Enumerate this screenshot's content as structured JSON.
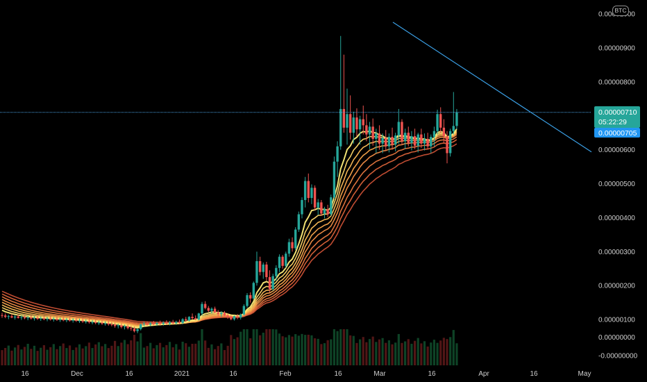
{
  "currency_badge": "BTC",
  "chart_data": {
    "type": "candlestick",
    "currency": "BTC",
    "y_axis": {
      "ticks": [
        "0.00001000",
        "0.00000900",
        "0.00000800",
        "0.00000700",
        "0.00000600",
        "0.00000500",
        "0.00000400",
        "0.00000300",
        "0.00000200",
        "0.00000100",
        "0.00000000",
        "-0.00000000"
      ],
      "ylim": [
        -2e-07,
        1.05e-05
      ]
    },
    "x_axis": {
      "ticks": [
        "16",
        "Dec",
        "16",
        "2021",
        "16",
        "Feb",
        "16",
        "Mar",
        "16",
        "Apr",
        "16",
        "May"
      ],
      "note": "daily candles, approx. early Nov 2020 to early May 2021"
    },
    "last_price": "0.00000710",
    "countdown": "05:22:29",
    "bid_price": "0.00000705",
    "price_level_line": 7.1e-06,
    "trendline": {
      "from": {
        "date": "2021-03-02",
        "price": 9.1e-06
      },
      "to": {
        "date": "2021-05-03",
        "price": 6.1e-06
      }
    },
    "ribbon": {
      "ema_count": 8,
      "colors": [
        "#ffee7a",
        "#ffd769",
        "#ffbf5a",
        "#f9a64d",
        "#f28e47",
        "#e87840",
        "#dc643a",
        "#c95035"
      ]
    },
    "candles": [
      [
        1.13e-06,
        1.2e-06,
        1.05e-06,
        1.12e-06
      ],
      [
        1.12e-06,
        1.18e-06,
        1.04e-06,
        1.08e-06
      ],
      [
        1.08e-06,
        1.14e-06,
        1.01e-06,
        1.1e-06
      ],
      [
        1.1e-06,
        1.17e-06,
        1.04e-06,
        1.06e-06
      ],
      [
        1.06e-06,
        1.13e-06,
        1e-06,
        1.09e-06
      ],
      [
        1.09e-06,
        1.16e-06,
        1.03e-06,
        1.05e-06
      ],
      [
        1.05e-06,
        1.12e-06,
        9.9e-07,
        1.07e-06
      ],
      [
        1.07e-06,
        1.14e-06,
        1.01e-06,
        1.04e-06
      ],
      [
        1.04e-06,
        1.11e-06,
        9.8e-07,
        1.06e-06
      ],
      [
        1.06e-06,
        1.13e-06,
        1e-06,
        1.03e-06
      ],
      [
        1.03e-06,
        1.1e-06,
        9.7e-07,
        1.05e-06
      ],
      [
        1.05e-06,
        1.12e-06,
        9.9e-07,
        1.02e-06
      ],
      [
        1.02e-06,
        1.09e-06,
        9.6e-07,
        1.04e-06
      ],
      [
        1.04e-06,
        1.11e-06,
        9.8e-07,
        1.01e-06
      ],
      [
        1.01e-06,
        1.08e-06,
        9.5e-07,
        1.03e-06
      ],
      [
        1.03e-06,
        1.1e-06,
        9.7e-07,
        1e-06
      ],
      [
        1e-06,
        1.07e-06,
        9.4e-07,
        1.02e-06
      ],
      [
        1.02e-06,
        1.09e-06,
        9.6e-07,
        9.9e-07
      ],
      [
        9.9e-07,
        1.06e-06,
        9.3e-07,
        1.01e-06
      ],
      [
        1.01e-06,
        1.08e-06,
        9.5e-07,
        9.8e-07
      ],
      [
        9.8e-07,
        1.05e-06,
        9.2e-07,
        1e-06
      ],
      [
        1e-06,
        1.07e-06,
        9.4e-07,
        9.7e-07
      ],
      [
        9.7e-07,
        1.04e-06,
        9.1e-07,
        9.9e-07
      ],
      [
        9.9e-07,
        1.06e-06,
        9.3e-07,
        9.6e-07
      ],
      [
        9.6e-07,
        1.03e-06,
        9e-07,
        9.7e-07
      ],
      [
        9.7e-07,
        1.04e-06,
        9e-07,
        9.4e-07
      ],
      [
        9.4e-07,
        1.01e-06,
        8.8e-07,
        9.5e-07
      ],
      [
        9.5e-07,
        1.02e-06,
        8.8e-07,
        9.2e-07
      ],
      [
        9.2e-07,
        9.9e-07,
        8.6e-07,
        9.3e-07
      ],
      [
        9.3e-07,
        1e-06,
        8.6e-07,
        9e-07
      ],
      [
        9e-07,
        9.7e-07,
        8.4e-07,
        9.1e-07
      ],
      [
        9.1e-07,
        9.8e-07,
        8.4e-07,
        8.8e-07
      ],
      [
        8.8e-07,
        9.5e-07,
        8.2e-07,
        8.9e-07
      ],
      [
        8.9e-07,
        9.6e-07,
        8.2e-07,
        8.6e-07
      ],
      [
        8.6e-07,
        9.3e-07,
        8e-07,
        8.5e-07
      ],
      [
        8.5e-07,
        9.1e-07,
        7.6e-07,
        8.1e-07
      ],
      [
        8.1e-07,
        8.8e-07,
        7.4e-07,
        8.3e-07
      ],
      [
        8.3e-07,
        8.9e-07,
        7.4e-07,
        7.8e-07
      ],
      [
        7.8e-07,
        8.5e-07,
        7.1e-07,
        8e-07
      ],
      [
        8e-07,
        8.6e-07,
        7.1e-07,
        7.5e-07
      ],
      [
        7.5e-07,
        8.2e-07,
        6.7e-07,
        7.3e-07
      ],
      [
        7.3e-07,
        7.9e-07,
        6.2e-07,
        6.6e-07
      ],
      [
        6.6e-07,
        7.4e-07,
        6e-07,
        7.2e-07
      ],
      [
        7.2e-07,
        8.8e-07,
        6.8e-07,
        8.6e-07
      ],
      [
        8.6e-07,
        9.4e-07,
        8e-07,
        8.8e-07
      ],
      [
        8.8e-07,
        9.5e-07,
        8.2e-07,
        8.5e-07
      ],
      [
        8.5e-07,
        9.3e-07,
        8e-07,
        8.9e-07
      ],
      [
        8.9e-07,
        9.6e-07,
        8.3e-07,
        8.6e-07
      ],
      [
        8.6e-07,
        9.4e-07,
        8.1e-07,
        9e-07
      ],
      [
        9e-07,
        9.7e-07,
        8.4e-07,
        8.7e-07
      ],
      [
        8.7e-07,
        9.5e-07,
        8.2e-07,
        9.1e-07
      ],
      [
        9.1e-07,
        9.8e-07,
        8.5e-07,
        8.8e-07
      ],
      [
        8.8e-07,
        9.6e-07,
        8.3e-07,
        9.2e-07
      ],
      [
        9.2e-07,
        9.9e-07,
        8.6e-07,
        8.9e-07
      ],
      [
        8.9e-07,
        9.7e-07,
        8.4e-07,
        9.3e-07
      ],
      [
        9.3e-07,
        1e-06,
        8.7e-07,
        9e-07
      ],
      [
        9e-07,
        1.04e-06,
        8.6e-07,
        1.01e-06
      ],
      [
        1.01e-06,
        1.08e-06,
        9.3e-07,
        9.7e-07
      ],
      [
        9.7e-07,
        1.1e-06,
        9.4e-07,
        1.08e-06
      ],
      [
        1.08e-06,
        1.18e-06,
        1e-06,
        1.04e-06
      ],
      [
        1.04e-06,
        1.12e-06,
        9.8e-07,
        1e-06
      ],
      [
        1e-06,
        1.2e-06,
        9.7e-07,
        1.18e-06
      ],
      [
        1.18e-06,
        1.52e-06,
        1.12e-06,
        1.46e-06
      ],
      [
        1.46e-06,
        1.54e-06,
        1.3e-06,
        1.34e-06
      ],
      [
        1.34e-06,
        1.4e-06,
        1.22e-06,
        1.26e-06
      ],
      [
        1.26e-06,
        1.36e-06,
        1.18e-06,
        1.32e-06
      ],
      [
        1.32e-06,
        1.38e-06,
        1.19e-06,
        1.21e-06
      ],
      [
        1.21e-06,
        1.28e-06,
        1.1e-06,
        1.16e-06
      ],
      [
        1.16e-06,
        1.25e-06,
        1.08e-06,
        1.2e-06
      ],
      [
        1.2e-06,
        1.25e-06,
        1.1e-06,
        1.12e-06
      ],
      [
        1.12e-06,
        1.18e-06,
        1.02e-06,
        1.08e-06
      ],
      [
        1.08e-06,
        1.13e-06,
        9.8e-07,
        1.01e-06
      ],
      [
        1.01e-06,
        1.12e-06,
        9.7e-07,
        1.1e-06
      ],
      [
        1.1e-06,
        1.16e-06,
        1.01e-06,
        1.06e-06
      ],
      [
        1.06e-06,
        1.18e-06,
        1e-06,
        1.15e-06
      ],
      [
        1.15e-06,
        1.45e-06,
        1.12e-06,
        1.4e-06
      ],
      [
        1.4e-06,
        1.78e-06,
        1.35e-06,
        1.72e-06
      ],
      [
        1.72e-06,
        1.8e-06,
        1.5e-06,
        1.62e-06
      ],
      [
        1.62e-06,
        2.12e-06,
        1.6e-06,
        2.08e-06
      ],
      [
        2.08e-06,
        3e-06,
        2e-06,
        2.72e-06
      ],
      [
        2.72e-06,
        2.85e-06,
        2.3e-06,
        2.4e-06
      ],
      [
        2.4e-06,
        2.68e-06,
        2.2e-06,
        2.62e-06
      ],
      [
        2.62e-06,
        2.7e-06,
        2.15e-06,
        2.25e-06
      ],
      [
        2.25e-06,
        2.45e-06,
        1.8e-06,
        1.9e-06
      ],
      [
        1.9e-06,
        2.35e-06,
        1.85e-06,
        2.28e-06
      ],
      [
        2.28e-06,
        2.6e-06,
        2.15e-06,
        2.52e-06
      ],
      [
        2.52e-06,
        2.92e-06,
        2.4e-06,
        2.85e-06
      ],
      [
        2.85e-06,
        2.9e-06,
        2.5e-06,
        2.58e-06
      ],
      [
        2.58e-06,
        3e-06,
        2.52e-06,
        2.94e-06
      ],
      [
        2.94e-06,
        3.38e-06,
        2.85e-06,
        3.28e-06
      ],
      [
        3.28e-06,
        3.42e-06,
        3e-06,
        3.1e-06
      ],
      [
        3.1e-06,
        3.72e-06,
        3.05e-06,
        3.65e-06
      ],
      [
        3.65e-06,
        4.18e-06,
        3.58e-06,
        4.1e-06
      ],
      [
        4.1e-06,
        4.6e-06,
        3.98e-06,
        4.52e-06
      ],
      [
        4.52e-06,
        5.2e-06,
        4.3e-06,
        5.08e-06
      ],
      [
        5.08e-06,
        5.3e-06,
        4.45e-06,
        4.58e-06
      ],
      [
        4.58e-06,
        4.98e-06,
        4.4e-06,
        4.88e-06
      ],
      [
        4.88e-06,
        4.95e-06,
        4.22e-06,
        4.3e-06
      ],
      [
        4.3e-06,
        4.55e-06,
        4.08e-06,
        4.45e-06
      ],
      [
        4.45e-06,
        4.52e-06,
        4.05e-06,
        4.12e-06
      ],
      [
        4.12e-06,
        4.32e-06,
        3.98e-06,
        4.25e-06
      ],
      [
        4.25e-06,
        4.38e-06,
        4.02e-06,
        4.1e-06
      ],
      [
        4.1e-06,
        4.68e-06,
        4.05e-06,
        4.6e-06
      ],
      [
        4.6e-06,
        5.8e-06,
        4.55e-06,
        5.65e-06
      ],
      [
        5.65e-06,
        6.25e-06,
        5.2e-06,
        6.1e-06
      ],
      [
        6.1e-06,
        9.35e-06,
        6e-06,
        7.2e-06
      ],
      [
        7.2e-06,
        8.8e-06,
        6.5e-06,
        6.65e-06
      ],
      [
        6.65e-06,
        7.8e-06,
        6.15e-06,
        7.05e-06
      ],
      [
        7.05e-06,
        7.6e-06,
        6.3e-06,
        6.5e-06
      ],
      [
        6.5e-06,
        7.12e-06,
        6.18e-06,
        6.95e-06
      ],
      [
        6.95e-06,
        7.22e-06,
        6.4e-06,
        6.6e-06
      ],
      [
        6.6e-06,
        7e-06,
        6.15e-06,
        6.9e-06
      ],
      [
        6.9e-06,
        7.3e-06,
        6.45e-06,
        6.72e-06
      ],
      [
        6.72e-06,
        7.05e-06,
        6.25e-06,
        6.45e-06
      ],
      [
        6.45e-06,
        6.82e-06,
        6.02e-06,
        6.68e-06
      ],
      [
        6.68e-06,
        6.92e-06,
        6.12e-06,
        6.32e-06
      ],
      [
        6.32e-06,
        6.62e-06,
        5.9e-06,
        6.48e-06
      ],
      [
        6.48e-06,
        6.72e-06,
        6e-06,
        6.18e-06
      ],
      [
        6.18e-06,
        6.48e-06,
        5.9e-06,
        6.35e-06
      ],
      [
        6.35e-06,
        6.58e-06,
        5.98e-06,
        6.1e-06
      ],
      [
        6.1e-06,
        6.48e-06,
        5.92e-06,
        6.38e-06
      ],
      [
        6.38e-06,
        6.65e-06,
        6e-06,
        6.15e-06
      ],
      [
        6.15e-06,
        6.5e-06,
        5.95e-06,
        6.42e-06
      ],
      [
        6.42e-06,
        7.2e-06,
        6.18e-06,
        6.82e-06
      ],
      [
        6.82e-06,
        6.9e-06,
        6.15e-06,
        6.25e-06
      ],
      [
        6.25e-06,
        6.62e-06,
        6.02e-06,
        6.5e-06
      ],
      [
        6.5e-06,
        6.68e-06,
        6.1e-06,
        6.2e-06
      ],
      [
        6.2e-06,
        6.55e-06,
        5.98e-06,
        6.4e-06
      ],
      [
        6.4e-06,
        6.62e-06,
        6.02e-06,
        6.12e-06
      ],
      [
        6.12e-06,
        6.5e-06,
        5.92e-06,
        6.45e-06
      ],
      [
        6.45e-06,
        6.62e-06,
        6.05e-06,
        6.18e-06
      ],
      [
        6.18e-06,
        6.48e-06,
        5.98e-06,
        6.32e-06
      ],
      [
        6.32e-06,
        6.5e-06,
        6.02e-06,
        6.1e-06
      ],
      [
        6.1e-06,
        6.45e-06,
        5.9e-06,
        6.38e-06
      ],
      [
        6.38e-06,
        6.68e-06,
        6.1e-06,
        6.55e-06
      ],
      [
        6.55e-06,
        7.18e-06,
        6.45e-06,
        7.05e-06
      ],
      [
        7.05e-06,
        7.25e-06,
        6.5e-06,
        6.65e-06
      ],
      [
        6.65e-06,
        6.9e-06,
        6.2e-06,
        6.4e-06
      ],
      [
        6.4e-06,
        6.55e-06,
        5.6e-06,
        5.9e-06
      ],
      [
        5.9e-06,
        6.62e-06,
        5.8e-06,
        6.55e-06
      ],
      [
        6.55e-06,
        7.7e-06,
        6.45e-06,
        6.7e-06
      ],
      [
        6.7e-06,
        7.2e-06,
        6.6e-06,
        7.1e-06
      ]
    ]
  }
}
